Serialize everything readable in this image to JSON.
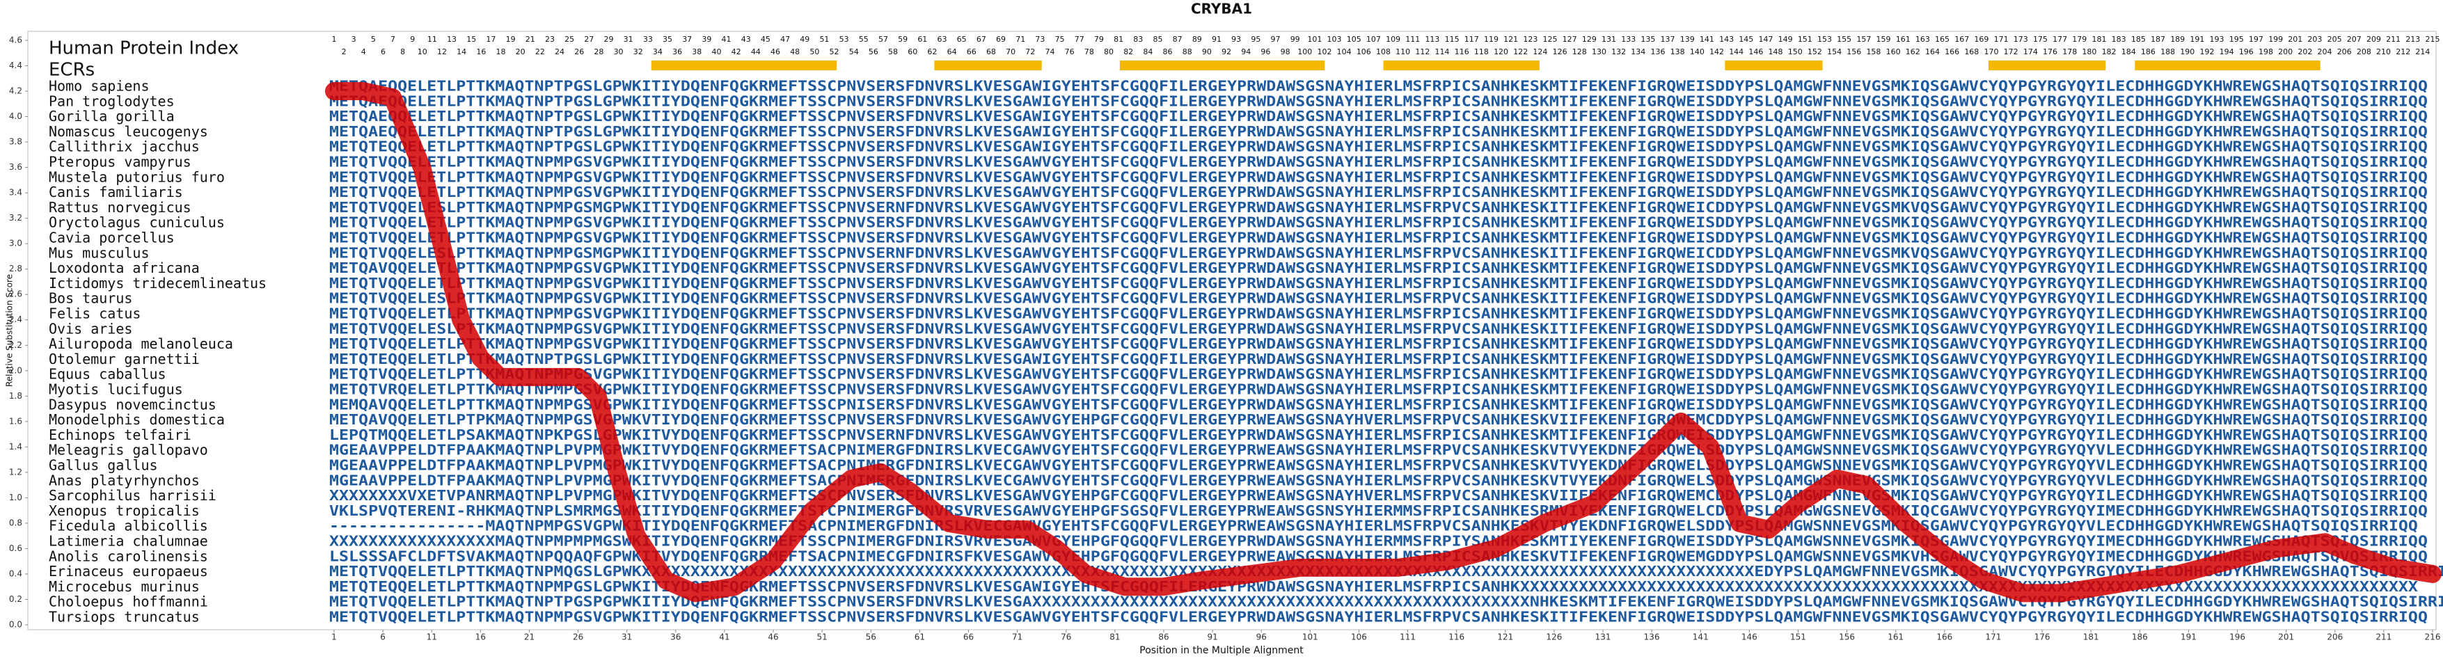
{
  "chart_data": {
    "type": "line",
    "title": "CRYBA1",
    "x_label": "Position in the Multiple Alignment",
    "y_label": "Relative Substitution Score",
    "row_header": "Human Protein Index",
    "ecr_label": "ECRs",
    "xlim": [
      1,
      216
    ],
    "ylim": [
      0,
      4.6
    ],
    "xticks": [
      1,
      6,
      11,
      16,
      21,
      26,
      31,
      36,
      41,
      46,
      51,
      56,
      61,
      66,
      71,
      76,
      81,
      86,
      91,
      96,
      101,
      106,
      111,
      116,
      121,
      126,
      131,
      136,
      141,
      146,
      151,
      156,
      161,
      166,
      171,
      176,
      181,
      186,
      191,
      196,
      201,
      206,
      211,
      216
    ],
    "yticks": [
      {
        "value": 0,
        "label": "0.0"
      },
      {
        "value": 0.2,
        "label": "0.2"
      },
      {
        "value": 0.4,
        "label": "0.4"
      },
      {
        "value": 0.6,
        "label": "0.6"
      },
      {
        "value": 0.8,
        "label": "0.8"
      },
      {
        "value": 1,
        "label": "1.0"
      },
      {
        "value": 1.2,
        "label": "1.2"
      },
      {
        "value": 1.4,
        "label": "1.4"
      },
      {
        "value": 1.6,
        "label": "1.6"
      },
      {
        "value": 1.8,
        "label": "1.8"
      },
      {
        "value": 2,
        "label": "2.0"
      },
      {
        "value": 2.2,
        "label": "2.2"
      },
      {
        "value": 2.4,
        "label": "2.4"
      },
      {
        "value": 2.6,
        "label": "2.6"
      },
      {
        "value": 2.8,
        "label": "2.8"
      },
      {
        "value": 3,
        "label": "3.0"
      },
      {
        "value": 3.2,
        "label": "3.2"
      },
      {
        "value": 3.4,
        "label": "3.4"
      },
      {
        "value": 3.6,
        "label": "3.6"
      },
      {
        "value": 3.8,
        "label": "3.8"
      },
      {
        "value": 4,
        "label": "4.0"
      },
      {
        "value": 4.2,
        "label": "4.2"
      },
      {
        "value": 4.4,
        "label": "4.4"
      },
      {
        "value": 4.6,
        "label": "4.6"
      }
    ],
    "color": "#d40000",
    "x": [
      1,
      4,
      7,
      10,
      12,
      14,
      16,
      18,
      22,
      26,
      28,
      30,
      32,
      35,
      38,
      42,
      46,
      50,
      54,
      57,
      60,
      64,
      68,
      72,
      75,
      78,
      82,
      86,
      90,
      95,
      100,
      105,
      110,
      115,
      120,
      125,
      130,
      135,
      139,
      142,
      145,
      148,
      151,
      155,
      158,
      162,
      166,
      170,
      174,
      178,
      182,
      186,
      190,
      195,
      200,
      205,
      208,
      212,
      216
    ],
    "values": [
      4.2,
      4.2,
      4.15,
      3.6,
      3.0,
      2.4,
      2.1,
      1.95,
      1.95,
      1.95,
      1.8,
      1.2,
      0.7,
      0.35,
      0.25,
      0.3,
      0.5,
      0.9,
      1.15,
      1.2,
      1.05,
      0.8,
      0.75,
      0.75,
      0.6,
      0.4,
      0.3,
      0.3,
      0.35,
      0.4,
      0.45,
      0.45,
      0.45,
      0.5,
      0.6,
      0.8,
      0.95,
      1.3,
      1.6,
      1.4,
      0.8,
      0.75,
      0.95,
      1.15,
      1.1,
      0.8,
      0.55,
      0.35,
      0.25,
      0.25,
      0.3,
      0.35,
      0.4,
      0.5,
      0.6,
      0.65,
      0.55,
      0.45,
      0.4
    ],
    "ecrs": [
      [
        34,
        52
      ],
      [
        63,
        73
      ],
      [
        82,
        102
      ],
      [
        109,
        124
      ],
      [
        144,
        153
      ],
      [
        171,
        182
      ],
      [
        186,
        204
      ]
    ],
    "ecr_color": "#f5b800",
    "protein_index": [
      1,
      2,
      3,
      4,
      5,
      6,
      7,
      8,
      9,
      10,
      11,
      12,
      13,
      14,
      15,
      16,
      17,
      18,
      19,
      20,
      21,
      22,
      23,
      24,
      25,
      26,
      27,
      28,
      29,
      30,
      31,
      32,
      33,
      34,
      35,
      36,
      37,
      38,
      39,
      40,
      41,
      42,
      43,
      44,
      45,
      46,
      47,
      48,
      49,
      50,
      51,
      52,
      53,
      54,
      55,
      56,
      57,
      58,
      59,
      60,
      61,
      62,
      63,
      64,
      65,
      66,
      67,
      68,
      69,
      70,
      71,
      72,
      73,
      74,
      75,
      76,
      77,
      78,
      79,
      80,
      81,
      82,
      83,
      84,
      85,
      86,
      87,
      88,
      89,
      90,
      91,
      92,
      93,
      94,
      95,
      96,
      97,
      98,
      99,
      100,
      101,
      102,
      103,
      104,
      105,
      106,
      107,
      108,
      109,
      110,
      111,
      112,
      113,
      114,
      115,
      116,
      117,
      118,
      119,
      120,
      121,
      122,
      123,
      124,
      125,
      126,
      127,
      128,
      129,
      130,
      131,
      132,
      133,
      134,
      135,
      136,
      137,
      138,
      139,
      140,
      141,
      142,
      143,
      144,
      145,
      146,
      147,
      148,
      149,
      150,
      151,
      152,
      153,
      154,
      155,
      156,
      157,
      158,
      159,
      160,
      161,
      162,
      163,
      164,
      165,
      166,
      167,
      168,
      169,
      170,
      171,
      172,
      173,
      174,
      175,
      176,
      177,
      178,
      179,
      180,
      181,
      182,
      183,
      184,
      185,
      186,
      187,
      188,
      189,
      190,
      191,
      192,
      193,
      194,
      195,
      196,
      197,
      198,
      199,
      200,
      201,
      202,
      203,
      204,
      205,
      206,
      207,
      208,
      209,
      210,
      211,
      212,
      213,
      214,
      215
    ],
    "species": [
      "Homo sapiens",
      "Pan troglodytes",
      "Gorilla gorilla",
      "Nomascus leucogenys",
      "Callithrix jacchus",
      "Pteropus vampyrus",
      "Mustela putorius furo",
      "Canis familiaris",
      "Rattus norvegicus",
      "Oryctolagus cuniculus",
      "Cavia porcellus",
      "Mus musculus",
      "Loxodonta africana",
      "Ictidomys tridecemlineatus",
      "Bos taurus",
      "Felis catus",
      "Ovis aries",
      "Ailuropoda melanoleuca",
      "Otolemur garnettii",
      "Equus caballus",
      "Myotis lucifugus",
      "Dasypus novemcinctus",
      "Monodelphis domestica",
      "Echinops telfairi",
      "Meleagris gallopavo",
      "Gallus gallus",
      "Anas platyrhynchos",
      "Sarcophilus harrisii",
      "Xenopus tropicalis",
      "Ficedula albicollis",
      "Latimeria chalumnae",
      "Anolis carolinensis",
      "Erinaceus europaeus",
      "Microcebus murinus",
      "Choloepus hoffmanni",
      "Tursiops truncatus"
    ],
    "sequences": [
      "METQAEQQELETLPTTKMAQTNPTPGSLGPWKITIYDQENFQGKRMEFTSSCPNVSERSFDNVRSLKVESGAWIGYEHTSFCGQQFILERGEYPRWDAWSGSNAYHIERLMSFRPICSANHKESKMTIFEKENFIGRQWEISDDYPSLQAMGWFNNEVGSMKIQSGAWVCYQYPGYRGYQYILECDHHGGDYKHWREWGSHAQTSQIQSIRRIQQ",
      "METQAEQQELETLPTTKMAQTNPTPGSLGPWKITIYDQENFQGKRMEFTSSCPNVSERSFDNVRSLKVESGAWIGYEHTSFCGQQFILERGEYPRWDAWSGSNAYHIERLMSFRPICSANHKESKMTIFEKENFIGRQWEISDDYPSLQAMGWFNNEVGSMKIQSGAWVCYQYPGYRGYQYILECDHHGGDYKHWREWGSHAQTSQIQSIRRIQQ",
      "METQAEQQELETLPTTKMAQTNPTPGSLGPWKITIYDQENFQGKRMEFTSSCPNVSERSFDNVRSLKVESGAWIGYEHTSFCGQQFILERGEYPRWDAWSGSNAYHIERLMSFRPICSANHKESKMTIFEKENFIGRQWEISDDYPSLQAMGWFNNEVGSMKIQSGAWVCYQYPGYRGYQYILECDHHGGDYKHWREWGSHAQTSQIQSIRRIQQ",
      "METQAEQQELETLPTTKMAQTNPTPGSLGPWKITIYDQENFQGKRMEFTSSCPNVSERSFDNVRSLKVESGAWIGYEHTSFCGQQFILERGEYPRWDAWSGSNAYHIERLMSFRPICSANHKESKMTIFEKENFIGRQWEISDDYPSLQAMGWFNNEVGSMKIQSGAWVCYQYPGYRGYQYILECDHHGGDYKHWREWGSHAQTSQIQSIRRIQQ",
      "METQTEQQELETLPTTKMAQTNPTPGSLGPWKITIYDQENFQGKRMEFTSSCPNVSERSFDNVRSLKVESGAWIGYEHTSFCGQQFILERGEYPRWDAWSGSNAYHIERLMSFRPICSANHKESKMTIFEKENFIGRQWEISDDYPSLQAMGWFNNEVGSMKIQSGAWVCYQYPGYRGYQYILECDHHGGDYKHWREWGSHAQTSQIQSIRRIQQ",
      "METQTVQQELETLPTTKMAQTNPMPGSVGPWKITIYDQENFQGKRMEFTSSCPNVSERSFDNVRSLKVESGAWVGYEHTSFCGQQFVLERGEYPRWDAWSGSNAYHIERLMSFRPICSANHKESKMTIFEKENFIGRQWEISDDYPSLQAMGWFNNEVGSMKIQSGAWVCYQYPGYRGYQYILECDHHGGDYKHWREWGSHAQTSQIQSIRRIQQ",
      "METQTVQQELETLPTTKMAQTNPMPGSVGPWKITIYDQENFQGKRMEFTSSCPNVSERSFDNVRSLKVESGAWVGYEHTSFCGQQFVLERGEYPRWDAWSGSNAYHIERLMSFRPICSANHKESKMTIFEKENFIGRQWEISDDYPSLQAMGWFNNEVGSMKIQSGAWVCYQYPGYRGYQYILECDHHGGDYKHWREWGSHAQTSQIQSIRRIQQ",
      "METQTVQQELETLPTTKMAQTNPMPGSVGPWKITIYDQENFQGKRMEFTSSCPNVSERSFDNVRSLKVESGAWVGYEHTSFCGQQFVLERGEYPRWDAWSGSNAYHIERLMSFRPICSANHKESKMTIFEKENFIGRQWEISDDYPSLQAMGWFNNEVGSMKIQSGAWVCYQYPGYRGYQYILECDHHGGDYKHWREWGSHAQTSQIQSIRRIQQ",
      "METQTVQQELESLPTTKMAQTNPMPGSMGPWKITIYDQENFQGKRMEFTSSCPNVSERNFDNVRSLKVESGAWVGYEHTSFCGQQFVLERGEYPRWDAWSGSNAYHIERLMSFRPVCSANHKESKITIFEKENFIGRQWEICDDYPSLQAMGWFNNEVGSMKVQSGAWVCYQYPGYRGYQYILECDHHGGDYKHWREWGSHAQTSQIQSIRRIQQ",
      "METQTVQQELETLPTTKMAQTNPMPGSVGPWKITIYDQENFQGKRMEFTSSCPNVSERSFDNVRSLKVESGAWVGYEHTSFCGQQFVLERGEYPRWDAWSGSNAYHIERLMSFRPICSANHKESKMTIFEKENFIGRQWEISDDYPSLQAMGWFNNEVGSMKIQSGAWVCYQYPGYRGYQYILECDHHGGDYKHWREWGSHAQTSQIQSIRRIQQ",
      "METQTVQQELETLPTTKMAQTNPMPGSVGPWKITIYDQENFQGKRMEFTSSCPNVSERSFDNVRSLKVESGAWVGYEHTSFCGQQFVLERGEYPRWDAWSGSNAYHIERLMSFRPICSANHKESKMTIFEKENFIGRQWEISDDYPSLQAMGWFNNEVGSMKIQSGAWVCYQYPGYRGYQYILECDHHGGDYKHWREWGSHAQTSQIQSIRRIQQ",
      "METQTVQQELESLPTTKMAQTNPMPGSMGPWKITIYDQENFQGKRMEFTSSCPNVSERNFDNVRSLKVESGAWVGYEHTSFCGQQFVLERGEYPRWDAWSGSNAYHIERLMSFRPVCSANHKESKITIFEKENFIGRQWEICDDYPSLQAMGWFNNEVGSMKVQSGAWVCYQYPGYRGYQYILECDHHGGDYKHWREWGSHAQTSQIQSIRRIQQ",
      "METQAVQQELETLPTTKMAQTNPMPGSVGPWKITIYDQENFQGKRMEFTSSCPNVSERSFDNVRSLKVESGAWVGYEHTSFCGQQFVLERGEYPRWDAWSGSNAYHIERLMSFRPICSANHKESKMTIFEKENFIGRQWEISDDYPSLQAMGWFNNEVGSMKIQSGAWVCYQYPGYRGYQYILECDHHGGDYKHWREWGSHAQTSQIQSIRRIQQ",
      "METQTVQQELETLPTTKMAQTNPMPGSVGPWKITIYDQENFQGKRMEFTSSCPNVSERSFDNVRSLKVESGAWVGYEHTSFCGQQFVLERGEYPRWDAWSGSNAYHIERLMSFRPICSANHKESKMTIFEKENFIGRQWEISDDYPSLQAMGWFNNEVGSMKIQSGAWVCYQYPGYRGYQYILECDHHGGDYKHWREWGSHAQTSQIQSIRRIQQ",
      "METQTVQQELESLPTTKMAQTNPMPGSVGPWKITIYDQENFQGKRMEFTSSCPNVSERSFDNVRSLKVESGAWVGYEHTSFCGQQFVLERGEYPRWDAWSGSNAYHIERLMSFRPVCSANHKESKITIFEKENFIGRQWEISDDYPSLQAMGWFNNEVGSMKIQSGAWVCYQYPGYRGYQYILECDHHGGDYKHWREWGSHAQTSQIQSIRRIQQ",
      "METQTVQQELETLPTTKMAQTNPMPGSVGPWKITIYDQENFQGKRMEFTSSCPNVSERSFDNVRSLKVESGAWVGYEHTSFCGQQFVLERGEYPRWDAWSGSNAYHIERLMSFRPICSANHKESKMTIFEKENFIGRQWEISDDYPSLQAMGWFNNEVGSMKIQSGAWVCYQYPGYRGYQYILECDHHGGDYKHWREWGSHAQTSQIQSIRRIQQ",
      "METQTVQQELESLPTTKMAQTNPMPGSVGPWKITIYDQENFQGKRMEFTSSCPNVSERSFDNVRSLKVESGAWVGYEHTSFCGQQFVLERGEYPRWDAWSGSNAYHIERLMSFRPVCSANHKESKITIFEKENFIGRQWEISDDYPSLQAMGWFNNEVGSMKIQSGAWVCYQYPGYRGYQYILECDHHGGDYKHWREWGSHAQTSQIQSIRRIQQ",
      "METQTVQQELETLPTTKMAQTNPMPGSVGPWKITIYDQENFQGKRMEFTSSCPNVSERSFDNVRSLKVESGAWVGYEHTSFCGQQFVLERGEYPRWDAWSGSNAYHIERLMSFRPICSANHKESKMTIFEKENFIGRQWEISDDYPSLQAMGWFNNEVGSMKIQSGAWVCYQYPGYRGYQYILECDHHGGDYKHWREWGSHAQTSQIQSIRRIQQ",
      "METQTEQQELETLPTTKMAQTNPTPGSLGPWKITIYDQENFQGKRMEFTSSCPNVSERSFDNVRSLKVESGAWIGYEHTSFCGQQFILERGEYPRWDAWSGSNAYHIERLMSFRPICSANHKESKMTIFEKENFIGRQWEISDDYPSLQAMGWFNNEVGSMKIQSGAWVCYQYPGYRGYQYILECDHHGGDYKHWREWGSHAQTSQIQSIRRIQQ",
      "METQTVQQELETLPTTKMAQTNPMPGSVGPWKITIYDQENFQGKRMEFTSSCPNVSERSFDNVRSLKVESGAWVGYEHTSFCGQQFVLERGEYPRWDAWSGSNAYHIERLMSFRPICSANHKESKMTIFEKENFIGRQWEISDDYPSLQAMGWFNNEVGSMKIQSGAWVCYQYPGYRGYQYILECDHHGGDYKHWREWGSHAQTSQIQSIRRIQQ",
      "METQTVRQELETLPTTKMAQTNPMPGSVGPWKITIYDQENFQGKRMEFTSSCPNVSERSFDNVRSLKVESGAWVGYEHTSFCGQQFVLERGEYPRWDAWSGSNAYHIERLMSFRPICSANHKESKMTIFEKENFIGRQWEISDDYPSLQAMGWFNNEVGSMKIQSGAWVCYQYPGYRGYQYILECDHHGGDYKHWREWGSHAQTSQIQSIRRIQQ",
      "MEMQAVQQELETLPTTKMAQTNPMPGSVGPWKITIYDQENFQGKRMEFTSSCPNISERSFDNVRSLKVESGAWVGYEHTSFCGQQFVLERGEYPRWDAWSGSNAYHIERLMSFRPICSANHKESKMTIFEKENFIGRQWEISDDYPSLQAMGWFNNEVGSMKIQSGAWVCYQYPGYRGYQYILECDHHGGDYKHWREWGSHAQTSQIQSIRRIQQ",
      "METQAVQQELETLPTPKMAQTNPMPGSVGPWKVTIYDQENFQGKRMEFTSSCPNVSERSFDNVRSLKVESGAWVGYEHPGFCGQQFVLERGEYPRWEAWSGSNAYHVERLMSFRPVCSANHKESKVIIFEKENFIGRQWEMCDDYPSLQAMGWFNNEVGSMKIQSGAWVCYQYPGYRGYQYILECDHHGGDYKHWREWGSHAQTSQIQSIRRIQQ",
      "LEPQTMQQELETLPSAKMAQTNPKPGSLGPWKITVYDQENFQGKRMEFTSSCPNVSERNFDNVRSLKVESGAWVGYEHTSFCGQQFVLERGEYPRWDAWSGSNAYHIERLMSFRPICSANHKESKMTIFEKENFIGRQWEISDDYPSLQAMGWFNNEVGSMKIQSGAWVCYQYPGYRGYQYILECDHHGGDYKHWREWGSHAQTSQIQSIRRIQQ",
      "MGEAAVPPELDTFPAAKMAQTNPLPVPMGPWKITVYDQENFQGKRMEFTSACPNIMERGFDNIRSLKVECGAWVGYEHTSFCGQQFVLERGEYPRWEAWSGSNAYHIERLMSFRPVCSANHKESKVTVYEKDNFIGRQWELSDDYPSLQAMGWSNNEVGSMKIQSGAWVCYQYPGYRGYQYVLECDHHGGDYKHWREWGSHAQTSQIQSIRRIQQ",
      "MGEAAVPPELDTFPAAKMAQTNPLPVPMGPWKITVYDQENFQGKRMEFTSACPNIMERGFDNIRSLKVECGAWVGYEHTSFCGQQFVLERGEYPRWEAWSGSNAYHIERLMSFRPVCSANHKESKVTVYEKDNFIGRQWELSDDYPSLQAMGWSNNEVGSMKIQSGAWVCYQYPGYRGYQYVLECDHHGGDYKHWREWGSHAQTSQIQSIRRIQQ",
      "MGEAAVPPELDTFPAAKMAQTNPLPVPMGPWKITVYDQENFQGKRMEFTSACPNIMERGFDNIRSLKVECGAWVGYEHTSFCGQQFVLERGEYPRWEAWSGSNAYHIERLMSFRPVCSANHKESKVTVYEKDNFIGRQWELSDDYPSLQAMGWSNNEVGSMKIQSGAWVCYQYPGYRGYQYVLECDHHGGDYKHWREWGSHAQTSQIQSIRRIQQ",
      "XXXXXXXXVXETVPANRMAQTNPLPVPMGPWKITVYDQENFQGKRMEFTSSCPNVSERSFDNVRSLKVESGAWVGYEHPGFCGQQFVLERGEYPRWEAWSGSNAYHVERLMSFRPVCSANHKESKVIIFEKENFIGRQWEMCDDYPSLQAMGWFNNEVGSMKIQSGAWVCYQYPGYRGYQYILECDHHGGDYKHWREWGSHAQTSQIQSIRRIQQ",
      "VKLSPVQTERENI-RHKMAQTNPLSMRMGSWKITIYDQENFQGKRMEFTSTCPNIMERGFDNVRSVRVESGAWVGYEHPGFSGSQFVLERGEYPRWEAWSGSNSYHIERMMSFRPICSANHKESRMVIYEKENFIGRQWELCDDYPSLQAMGWGSNEVGSMKIQCGAWVCYQYPGYRGYQYIMECDHHGGDYKHWREWGSHAQTSQIQSIRRIQQ",
      "----------------MAQTNPMPGSVGPWKITIYDQENFQGKRMEFTSACPNIMERGFDNIRSLKVECGAWVGYEHTSFCGQQFVLERGEYPRWEAWSGSNAYHIERLMSFRPVCSANHKESKVTVYEKDNFIGRQWELSDDYPSLQAMGWSNNEVGSMKIQSGAWVCYQYPGYRGYQYVLECDHHGGDYKHWREWGSHAQTSQIQSIRRIQQ",
      "XXXXXXXXXXXXXXXXXMAQTNPMPMPMGSWKITIYDQENFQGKRMEFTSSCPNIMERGFDNIRSVRVESGAWVGYEHPGFQGQQFVLERGEYPRWDAWSGSNAYHIERMMSFRPIYSANHKESKMTIYEKENFIGRQWEISDDYPSLQAMGWSNNEVGSMKIQSGAWVCYQYPGYRGYQYIMECDHHGGDYKHWREWGSHAQTSQIQSIRRIQQ",
      "LSLSSSAFCLDFTSVAKMAQTNPQQAQFGPWKITVYDQENFQGRRMEFTSACPNIMECGFDNIRSFKVESGAWVGYEHPGFQGQQFVLERGEYPRWEAWSGSNAYHIERLMSFRPICSANHKESKVTIFEKENFIGRQWEMGDDYPSLQAMGWSNNEVGSMKVHSGAWVCYQYPGYRGYQYIMECDHHGGDYKHWREWGSHAQTSQVQSIRRIQQ",
      "METQTVQQELETLPTTKMAQTNPMQGSLGPWKXXXXXXXXXXXXXXXXXXXXXXXXXXXXXXXXXXXXXXXXXXXXXXXXXXXXXXXXXXXXXXXXXXXXXXXXXXXXXXXXXXXXXXXXXXXXXXXXXXXXXXXXXXXXXXXXXXEDYPSLQAMGWFNNEVGSMKIQSGAWVCYQYPGYRGYQYILECDHHGGDYKHWREWGSHAQTSQIQSIRRIQQ",
      "METQTEQQELETLPTTKMAQTNPMPGSLGPWKITIYDQENFQGKRMEFTSSCPNVSERSFDNVRSLKVESGAWIGYEHTSFCGQQFILERGEYPRWDAWSGSNAYHIERLMSFRPICSANHKXXXXXXXXXXXXXXXXXXXXXXXXXXXXXXXXXXXXXXXXXXXXXXXXXXXXXXXXXXXXXXXXXXXXXXXXXXXXXXXXXXXXXXXXXXXX",
      "METQTVQQELETLPTTKMAQTNPTPGSPGPWKITIYDQENFQGKRMEFTSSCPNVSERSFDNVRSLKVESGAXXXXXXXXXXXXXXXXXXXXXXXXXXXXXXXXXXXXXXXXXXXXXXXXXXXNHKESKMTIFEKENFIGRQWEISDDYPSLQAMGWFNNEVGSMKIQSGAWVCYQYPGYRGYQYILECDHHGGDYKHWREWGSHAQTSQIQSIRRIQQ",
      "METQTVQQELETLPTTKMAQTNPMPGSVGPWKITIYDQENFQGKRMEFTSSCPNVSERSFDNVRSLKVESGAWVGYEHTSFCGQQFVLERGEYPRWDAWSGSNAYHIERLMSFRPVCSANHKESKITIFEKENFIGRQWEISDDYPSLQAMGWFNNEVGSMKIQSGAWVCYQYPGYRGYQYILECDHHGGDYKHWREWGSHAQTSQIQSIRRIQQ"
    ]
  }
}
